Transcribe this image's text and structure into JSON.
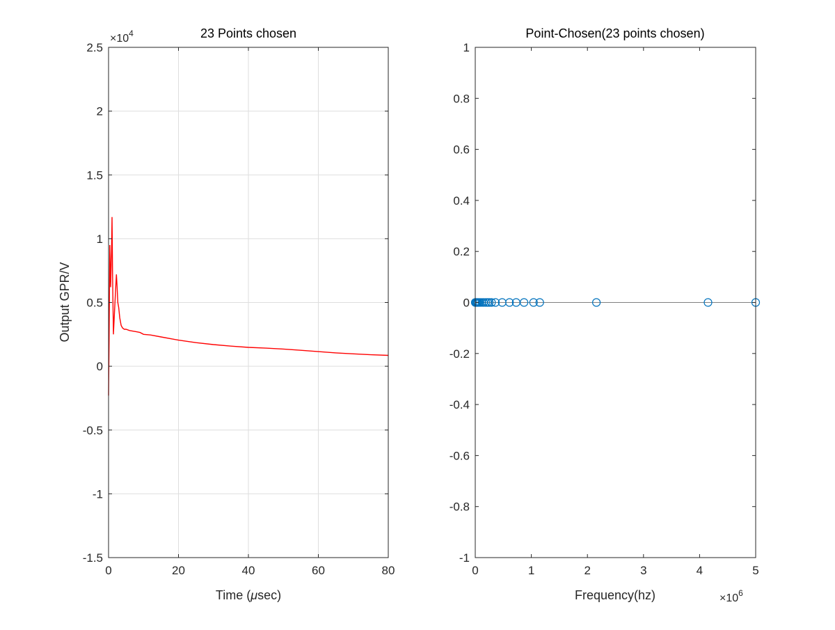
{
  "chart_data": [
    {
      "type": "line",
      "title": "23 Points chosen",
      "xlabel_main": "Time (",
      "xlabel_mu": "μ",
      "xlabel_unit": "sec)",
      "ylabel": "Output GPR/V",
      "xlim": [
        0,
        80
      ],
      "ylim": [
        -1.5,
        2.5
      ],
      "x_ticks": [
        0,
        20,
        40,
        60,
        80
      ],
      "x_tick_labels": [
        "0",
        "20",
        "40",
        "60",
        "80"
      ],
      "y_ticks": [
        -1.5,
        -1,
        -0.5,
        0,
        0.5,
        1,
        1.5,
        2,
        2.5
      ],
      "y_tick_labels": [
        "-1.5",
        "-1",
        "-0.5",
        "0",
        "0.5",
        "1",
        "1.5",
        "2",
        "2.5"
      ],
      "y_exponent_base": "×10",
      "y_exponent_power": "4",
      "grid": true,
      "line_color": "#ff0000",
      "series": [
        {
          "x": [
            0,
            0.15,
            0.35,
            0.6,
            0.85,
            1.0,
            1.15,
            1.4,
            1.7,
            2.0,
            2.25,
            2.45,
            2.65,
            2.9,
            3.2,
            3.6,
            4.0,
            4.5,
            5.0,
            6.0,
            7.0,
            8.0,
            9.0,
            10.0,
            12.0,
            15.0,
            20.0,
            25.0,
            30.0,
            35.0,
            40.0,
            45.0,
            50.0,
            55.0,
            60.0,
            65.0,
            70.0,
            75.0,
            80.0
          ],
          "y": [
            -0.23,
            0.2,
            0.95,
            0.62,
            0.9,
            1.17,
            0.7,
            0.25,
            0.42,
            0.6,
            0.72,
            0.62,
            0.5,
            0.46,
            0.38,
            0.32,
            0.3,
            0.29,
            0.29,
            0.28,
            0.275,
            0.27,
            0.265,
            0.25,
            0.245,
            0.23,
            0.205,
            0.185,
            0.17,
            0.158,
            0.148,
            0.142,
            0.135,
            0.125,
            0.115,
            0.105,
            0.097,
            0.09,
            0.085
          ]
        }
      ]
    },
    {
      "type": "scatter",
      "title": "Point-Chosen(23 points chosen)",
      "xlabel": "Frequency(hz)",
      "xlim": [
        0,
        5
      ],
      "ylim": [
        -1,
        1
      ],
      "x_ticks": [
        0,
        1,
        2,
        3,
        4,
        5
      ],
      "x_tick_labels": [
        "0",
        "1",
        "2",
        "3",
        "4",
        "5"
      ],
      "y_ticks": [
        -1,
        -0.8,
        -0.6,
        -0.4,
        -0.2,
        0,
        0.2,
        0.4,
        0.6,
        0.8,
        1
      ],
      "y_tick_labels": [
        "-1",
        "-0.8",
        "-0.6",
        "-0.4",
        "-0.2",
        "0",
        "0.2",
        "0.4",
        "0.6",
        "0.8",
        "1"
      ],
      "x_exponent_base": "×10",
      "x_exponent_power": "6",
      "grid": false,
      "marker_color": "#0072bd",
      "zero_line_color": "#808080",
      "points": {
        "x": [
          0.0,
          0.01,
          0.02,
          0.035,
          0.05,
          0.07,
          0.09,
          0.12,
          0.15,
          0.19,
          0.22,
          0.25,
          0.29,
          0.36,
          0.48,
          0.61,
          0.73,
          0.87,
          1.04,
          1.15,
          2.16,
          4.15,
          5.0
        ],
        "y": [
          0,
          0,
          0,
          0,
          0,
          0,
          0,
          0,
          0,
          0,
          0,
          0,
          0,
          0,
          0,
          0,
          0,
          0,
          0,
          0,
          0,
          0,
          0
        ]
      }
    }
  ]
}
